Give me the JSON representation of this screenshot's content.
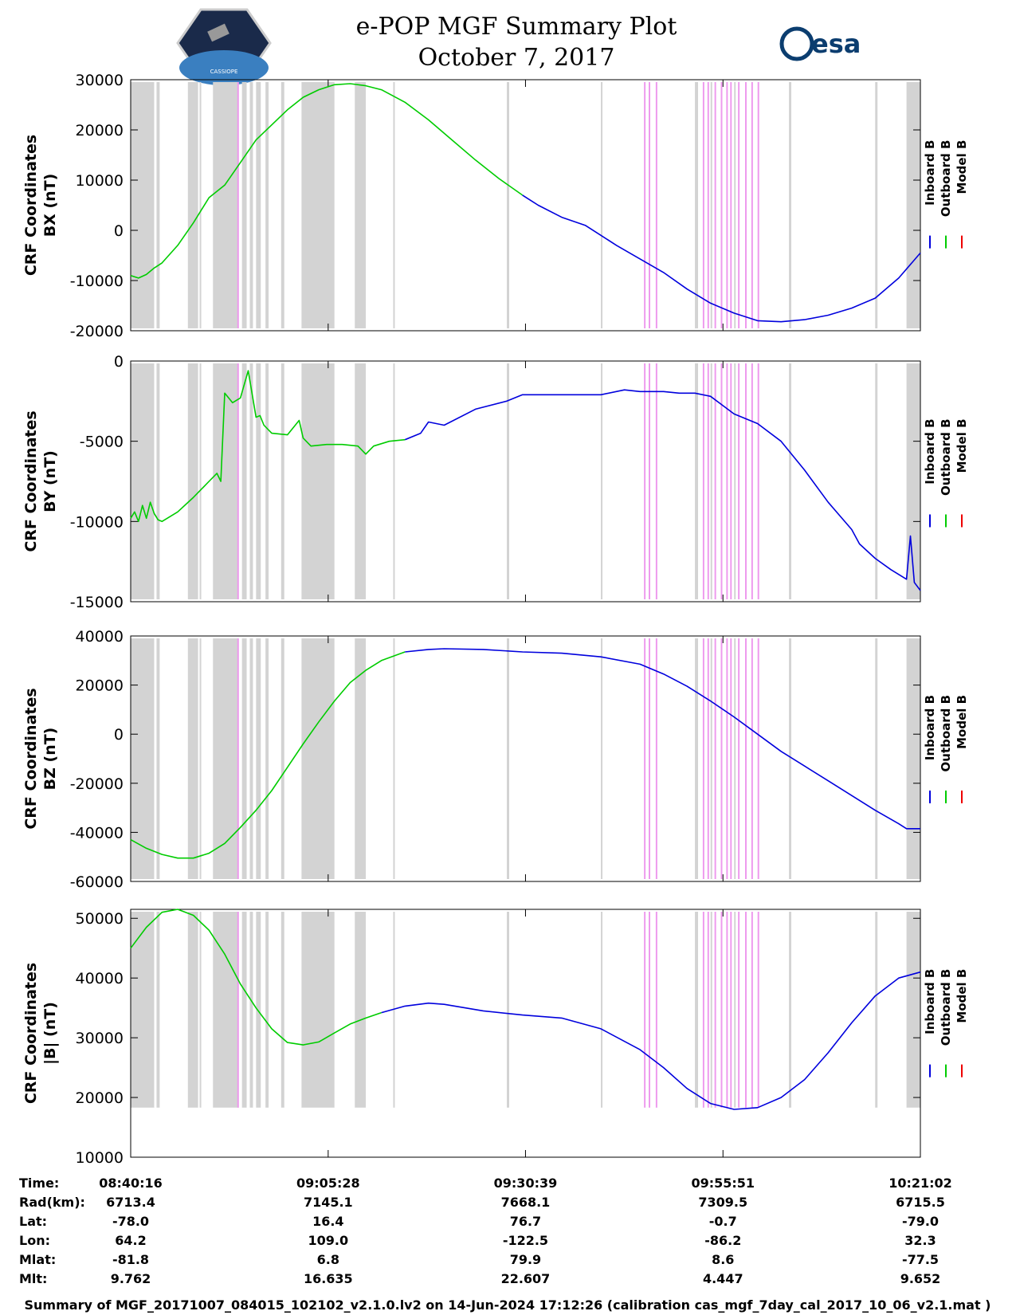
{
  "header": {
    "title_line1": "e-POP MGF Summary Plot",
    "title_line2": "October 7, 2017",
    "left_logo_text": "CASSIOPE",
    "right_logo_text": "esa"
  },
  "colors": {
    "inboard": "#0000dd",
    "outboard": "#00cc00",
    "model": "#ee0000",
    "gap_gray": "#d3d3d3",
    "gap_pink": "#ee99ee"
  },
  "chart_data": [
    {
      "type": "line",
      "ylabel": [
        "CRF Coordinates",
        "BX (nT)"
      ],
      "ylim": [
        -20000,
        30000
      ],
      "yticks": [
        -20000,
        -10000,
        0,
        10000,
        20000,
        30000
      ],
      "ytick_labels": [
        "-20000",
        "-10000",
        "0",
        "10000",
        "20000",
        "30000"
      ],
      "x_range_min": [
        0,
        100.77
      ],
      "legend": [
        "Inboard B",
        "Outboard B",
        "Model B"
      ],
      "series": [
        {
          "name": "Outboard B",
          "x": [
            0,
            1,
            2,
            3,
            4,
            6,
            8,
            10,
            12,
            14,
            16,
            18,
            20,
            22,
            24,
            26,
            28,
            30,
            32,
            35,
            38,
            41,
            44,
            47,
            50
          ],
          "y": [
            -9000,
            -9500,
            -8800,
            -7500,
            -6500,
            -3000,
            1500,
            6500,
            9000,
            13500,
            18000,
            21000,
            24000,
            26500,
            28000,
            29000,
            29200,
            28800,
            28000,
            25500,
            22000,
            18000,
            14000,
            10300,
            7000
          ]
        },
        {
          "name": "Inboard B",
          "x": [
            50,
            52,
            55,
            58,
            60,
            62,
            65,
            68,
            71,
            74,
            77,
            80,
            83,
            86,
            89,
            92,
            95,
            98,
            100.77
          ],
          "y": [
            7000,
            5000,
            2600,
            1000,
            -1000,
            -3000,
            -5700,
            -8400,
            -11700,
            -14500,
            -16500,
            -18000,
            -18200,
            -17800,
            -16900,
            -15500,
            -13500,
            -9500,
            -4500
          ]
        }
      ],
      "gray_gaps_min": [
        [
          0,
          3
        ],
        [
          3.3,
          3.7
        ],
        [
          7.3,
          8.6
        ],
        [
          8.8,
          9.0
        ],
        [
          10.5,
          13.8
        ],
        [
          14.2,
          14.8
        ],
        [
          15.2,
          15.6
        ],
        [
          16.0,
          16.6
        ],
        [
          17.2,
          17.6
        ],
        [
          19.2,
          19.6
        ],
        [
          21.8,
          26.0
        ],
        [
          28.6,
          30.0
        ],
        [
          33.5,
          33.7
        ],
        [
          48.0,
          48.3
        ],
        [
          60.0,
          60.2
        ],
        [
          72.0,
          72.4
        ],
        [
          74.0,
          74.2
        ],
        [
          77.0,
          77.2
        ],
        [
          84.0,
          84.3
        ],
        [
          95.0,
          95.3
        ],
        [
          99.0,
          100.77
        ]
      ],
      "pink_gaps_min": [
        [
          13.6,
          13.8
        ],
        [
          65.5,
          65.7
        ],
        [
          66.1,
          66.3
        ],
        [
          67.0,
          67.2
        ],
        [
          73.0,
          73.2
        ],
        [
          73.6,
          73.8
        ],
        [
          74.5,
          74.7
        ],
        [
          75.3,
          75.5
        ],
        [
          76.0,
          76.2
        ],
        [
          76.5,
          76.7
        ],
        [
          77.5,
          77.7
        ],
        [
          78.4,
          78.6
        ],
        [
          79.2,
          79.4
        ],
        [
          80.0,
          80.2
        ]
      ]
    },
    {
      "type": "line",
      "ylabel": [
        "CRF Coordinates",
        "BY (nT)"
      ],
      "ylim": [
        -15000,
        0
      ],
      "yticks": [
        -15000,
        -10000,
        -5000,
        0
      ],
      "ytick_labels": [
        "-15000",
        "-10000",
        "-5000",
        "0"
      ],
      "x_range_min": [
        0,
        100.77
      ],
      "legend": [
        "Inboard B",
        "Outboard B",
        "Model B"
      ],
      "series": [
        {
          "name": "Outboard B",
          "x": [
            0,
            0.5,
            1,
            1.5,
            2,
            2.5,
            3,
            3.5,
            4,
            6,
            8,
            9,
            10,
            11,
            11.5,
            12,
            13,
            14,
            15,
            16,
            16.5,
            17,
            18,
            20,
            21.5,
            22,
            23,
            25,
            27,
            29,
            30,
            31,
            33,
            35
          ],
          "y": [
            -9800,
            -9400,
            -10000,
            -9000,
            -9800,
            -8800,
            -9500,
            -9900,
            -10000,
            -9400,
            -8500,
            -8000,
            -7500,
            -7000,
            -7500,
            -2000,
            -2600,
            -2300,
            -600,
            -3500,
            -3400,
            -4000,
            -4500,
            -4600,
            -3700,
            -4800,
            -5300,
            -5200,
            -5200,
            -5300,
            -5800,
            -5300,
            -5000,
            -4900
          ]
        },
        {
          "name": "Inboard B",
          "x": [
            35,
            37,
            38,
            40,
            44,
            48,
            50,
            53,
            56,
            60,
            63,
            65,
            68,
            70,
            72,
            74,
            77,
            80,
            83,
            86,
            89,
            92,
            93,
            95,
            97,
            99,
            99.5,
            100,
            100.77
          ],
          "y": [
            -4900,
            -4500,
            -3800,
            -4000,
            -3000,
            -2500,
            -2100,
            -2100,
            -2100,
            -2100,
            -1800,
            -1900,
            -1900,
            -2000,
            -2000,
            -2200,
            -3300,
            -3900,
            -5000,
            -6800,
            -8800,
            -10500,
            -11400,
            -12300,
            -13000,
            -13600,
            -10900,
            -13800,
            -14300
          ]
        }
      ],
      "gray_gaps_min": [
        [
          0,
          3
        ],
        [
          3.3,
          3.7
        ],
        [
          7.3,
          8.6
        ],
        [
          8.8,
          9.0
        ],
        [
          10.5,
          13.8
        ],
        [
          14.2,
          14.8
        ],
        [
          15.2,
          15.6
        ],
        [
          16.0,
          16.6
        ],
        [
          17.2,
          17.6
        ],
        [
          19.2,
          19.6
        ],
        [
          21.8,
          26.0
        ],
        [
          28.6,
          30.0
        ],
        [
          33.5,
          33.7
        ],
        [
          48.0,
          48.3
        ],
        [
          60.0,
          60.2
        ],
        [
          72.0,
          72.4
        ],
        [
          74.0,
          74.2
        ],
        [
          77.0,
          77.2
        ],
        [
          84.0,
          84.3
        ],
        [
          95.0,
          95.3
        ],
        [
          99.0,
          100.77
        ]
      ],
      "pink_gaps_min": [
        [
          13.6,
          13.8
        ],
        [
          65.5,
          65.7
        ],
        [
          66.1,
          66.3
        ],
        [
          67.0,
          67.2
        ],
        [
          73.0,
          73.2
        ],
        [
          73.6,
          73.8
        ],
        [
          74.5,
          74.7
        ],
        [
          75.3,
          75.5
        ],
        [
          76.0,
          76.2
        ],
        [
          76.5,
          76.7
        ],
        [
          77.5,
          77.7
        ],
        [
          78.4,
          78.6
        ],
        [
          79.2,
          79.4
        ],
        [
          80.0,
          80.2
        ]
      ]
    },
    {
      "type": "line",
      "ylabel": [
        "CRF Coordinates",
        "BZ (nT)"
      ],
      "ylim": [
        -60000,
        40000
      ],
      "yticks": [
        -60000,
        -40000,
        -20000,
        0,
        20000,
        40000
      ],
      "ytick_labels": [
        "-60000",
        "-40000",
        "-20000",
        "0",
        "20000",
        "40000"
      ],
      "x_range_min": [
        0,
        100.77
      ],
      "legend": [
        "Inboard B",
        "Outboard B",
        "Model B"
      ],
      "series": [
        {
          "name": "Outboard B",
          "x": [
            0,
            2,
            4,
            6,
            8,
            10,
            12,
            14,
            16,
            18,
            20,
            22,
            24,
            26,
            28,
            30,
            32,
            35
          ],
          "y": [
            -43000,
            -46500,
            -49000,
            -50500,
            -50500,
            -48500,
            -44500,
            -38000,
            -31000,
            -23000,
            -13500,
            -4000,
            5000,
            13500,
            21000,
            26000,
            30000,
            33500
          ]
        },
        {
          "name": "Inboard B",
          "x": [
            35,
            38,
            40,
            45,
            50,
            55,
            60,
            65,
            68,
            71,
            74,
            77,
            80,
            83,
            86,
            89,
            92,
            95,
            98,
            99,
            100.77
          ],
          "y": [
            33500,
            34500,
            34800,
            34500,
            33500,
            33000,
            31500,
            28500,
            24500,
            19500,
            13500,
            7000,
            0,
            -7000,
            -13000,
            -19000,
            -25000,
            -31000,
            -36500,
            -38500,
            -38500
          ]
        }
      ],
      "gray_gaps_min": [
        [
          0,
          3
        ],
        [
          3.3,
          3.7
        ],
        [
          7.3,
          8.6
        ],
        [
          8.8,
          9.0
        ],
        [
          10.5,
          13.8
        ],
        [
          14.2,
          14.8
        ],
        [
          15.2,
          15.6
        ],
        [
          16.0,
          16.6
        ],
        [
          17.2,
          17.6
        ],
        [
          19.2,
          19.6
        ],
        [
          21.8,
          26.0
        ],
        [
          28.6,
          30.0
        ],
        [
          33.5,
          33.7
        ],
        [
          48.0,
          48.3
        ],
        [
          60.0,
          60.2
        ],
        [
          72.0,
          72.4
        ],
        [
          74.0,
          74.2
        ],
        [
          77.0,
          77.2
        ],
        [
          84.0,
          84.3
        ],
        [
          95.0,
          95.3
        ],
        [
          99.0,
          100.77
        ]
      ],
      "pink_gaps_min": [
        [
          13.6,
          13.8
        ],
        [
          65.5,
          65.7
        ],
        [
          66.1,
          66.3
        ],
        [
          67.0,
          67.2
        ],
        [
          73.0,
          73.2
        ],
        [
          73.6,
          73.8
        ],
        [
          74.5,
          74.7
        ],
        [
          75.3,
          75.5
        ],
        [
          76.0,
          76.2
        ],
        [
          76.5,
          76.7
        ],
        [
          77.5,
          77.7
        ],
        [
          78.4,
          78.6
        ],
        [
          79.2,
          79.4
        ],
        [
          80.0,
          80.2
        ]
      ]
    },
    {
      "type": "line",
      "ylabel": [
        "CRF Coordinates",
        "|B| (nT)"
      ],
      "ylim": [
        10000,
        51500
      ],
      "yticks": [
        10000,
        20000,
        30000,
        40000,
        50000
      ],
      "ytick_labels": [
        "10000",
        "20000",
        "30000",
        "40000",
        "50000"
      ],
      "x_range_min": [
        0,
        100.77
      ],
      "legend": [
        "Inboard B",
        "Outboard B",
        "Model B"
      ],
      "series": [
        {
          "name": "Outboard B",
          "x": [
            0,
            2,
            4,
            6,
            8,
            10,
            12,
            14,
            16,
            18,
            20,
            22,
            24,
            26,
            28,
            30,
            32
          ],
          "y": [
            45000,
            48500,
            51000,
            51500,
            50500,
            48000,
            44000,
            39000,
            35000,
            31500,
            29200,
            28800,
            29300,
            30800,
            32300,
            33300,
            34200
          ]
        },
        {
          "name": "Inboard B",
          "x": [
            32,
            35,
            38,
            40,
            45,
            50,
            55,
            60,
            65,
            68,
            71,
            74,
            77,
            80,
            83,
            86,
            89,
            92,
            95,
            98,
            100.77
          ],
          "y": [
            34200,
            35300,
            35800,
            35600,
            34500,
            33800,
            33300,
            31500,
            28000,
            25000,
            21500,
            19000,
            18000,
            18300,
            20000,
            23000,
            27500,
            32500,
            37000,
            40000,
            41000
          ]
        }
      ],
      "gray_gaps_min": [
        [
          0,
          3
        ],
        [
          3.3,
          3.7
        ],
        [
          7.3,
          8.6
        ],
        [
          8.8,
          9.0
        ],
        [
          10.5,
          13.8
        ],
        [
          14.2,
          14.8
        ],
        [
          15.2,
          15.6
        ],
        [
          16.0,
          16.6
        ],
        [
          17.2,
          17.6
        ],
        [
          19.2,
          19.6
        ],
        [
          21.8,
          26.0
        ],
        [
          28.6,
          30.0
        ],
        [
          33.5,
          33.7
        ],
        [
          48.0,
          48.3
        ],
        [
          60.0,
          60.2
        ],
        [
          72.0,
          72.4
        ],
        [
          74.0,
          74.2
        ],
        [
          77.0,
          77.2
        ],
        [
          84.0,
          84.3
        ],
        [
          95.0,
          95.3
        ],
        [
          99.0,
          100.77
        ]
      ],
      "pink_gaps_min": [
        [
          13.6,
          13.8
        ],
        [
          65.5,
          65.7
        ],
        [
          66.1,
          66.3
        ],
        [
          67.0,
          67.2
        ],
        [
          73.0,
          73.2
        ],
        [
          73.6,
          73.8
        ],
        [
          74.5,
          74.7
        ],
        [
          75.3,
          75.5
        ],
        [
          76.0,
          76.2
        ],
        [
          76.5,
          76.7
        ],
        [
          77.5,
          77.7
        ],
        [
          78.4,
          78.6
        ],
        [
          79.2,
          79.4
        ],
        [
          80.0,
          80.2
        ]
      ],
      "gap_floor_nT": 18300
    }
  ],
  "orbit_table": {
    "row_labels": [
      "Time:",
      "Rad(km):",
      "Lat:",
      "Lon:",
      "Mlat:",
      "Mlt:"
    ],
    "columns": [
      {
        "t_min": 0,
        "values": [
          "08:40:16",
          "6713.4",
          "-78.0",
          "64.2",
          "-81.8",
          "9.762"
        ]
      },
      {
        "t_min": 25.2,
        "values": [
          "09:05:28",
          "7145.1",
          "16.4",
          "109.0",
          "6.8",
          "16.635"
        ]
      },
      {
        "t_min": 50.38,
        "values": [
          "09:30:39",
          "7668.1",
          "76.7",
          "-122.5",
          "79.9",
          "22.607"
        ]
      },
      {
        "t_min": 75.58,
        "values": [
          "09:55:51",
          "7309.5",
          "-0.7",
          "-86.2",
          "8.6",
          "4.447"
        ]
      },
      {
        "t_min": 100.77,
        "values": [
          "10:21:02",
          "6715.5",
          "-79.0",
          "32.3",
          "-77.5",
          "9.652"
        ]
      }
    ]
  },
  "footer": "Summary of MGF_20171007_084015_102102_v2.1.0.lv2 on 14-Jun-2024 17:12:26 (calibration cas_mgf_7day_cal_2017_10_06_v2.1.mat )"
}
